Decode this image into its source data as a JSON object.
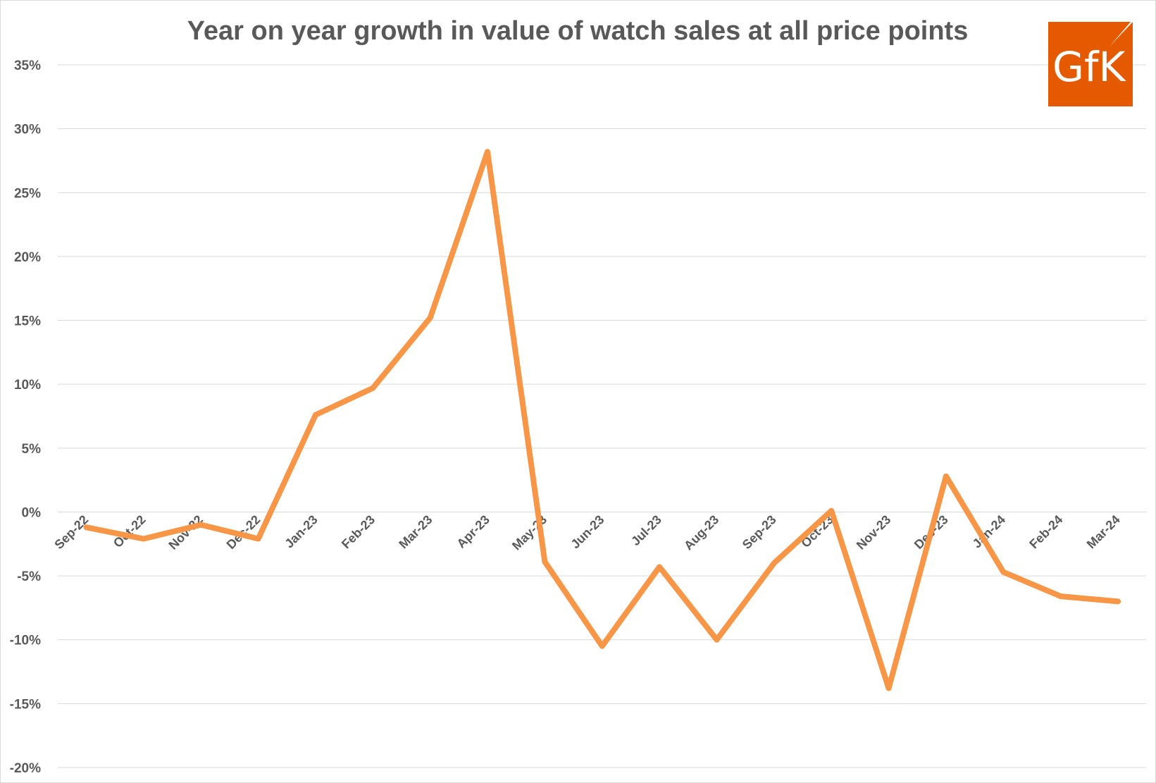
{
  "chart_data": {
    "type": "line",
    "title": "Year on year growth in value of watch sales at all price points",
    "xlabel": "",
    "ylabel": "",
    "categories": [
      "Sep-22",
      "Oct-22",
      "Nov-22",
      "Dec-22",
      "Jan-23",
      "Feb-23",
      "Mar-23",
      "Apr-23",
      "May-23",
      "Jun-23",
      "Jul-23",
      "Aug-23",
      "Sep-23",
      "Oct-23",
      "Nov-23",
      "Dec-23",
      "Jan-24",
      "Feb-24",
      "Mar-24"
    ],
    "series": [
      {
        "values": [
          -1.2,
          -2.1,
          -1.0,
          -2.1,
          7.6,
          9.7,
          15.2,
          28.2,
          -3.9,
          -10.5,
          -4.3,
          -10.0,
          -4.0,
          0.1,
          -13.8,
          2.8,
          -4.7,
          -6.6,
          -7.0
        ],
        "color": "#f79646"
      }
    ],
    "ylim": [
      -20,
      35
    ],
    "yticks": [
      35,
      30,
      25,
      20,
      15,
      10,
      5,
      0,
      -5,
      -10,
      -15,
      -20
    ],
    "ytick_labels": [
      "35%",
      "30%",
      "25%",
      "20%",
      "15%",
      "10%",
      "5%",
      "0%",
      "-5%",
      "-10%",
      "-15%",
      "-20%"
    ],
    "grid": true,
    "legend": "none"
  },
  "logo": {
    "text": "GfK",
    "color": "#e55a00"
  }
}
